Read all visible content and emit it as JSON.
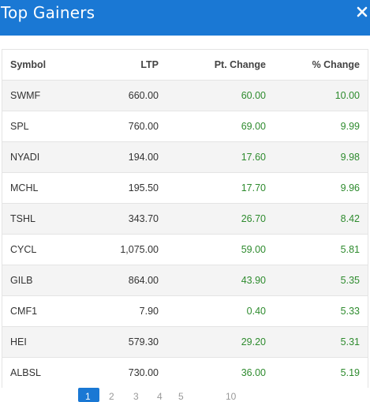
{
  "header": {
    "title": "Top Gainers",
    "close_icon": "close-icon"
  },
  "table": {
    "columns": [
      "Symbol",
      "LTP",
      "Pt. Change",
      "% Change"
    ],
    "rows": [
      {
        "symbol": "SWMF",
        "ltp": "660.00",
        "pt_change": "60.00",
        "pct_change": "10.00"
      },
      {
        "symbol": "SPL",
        "ltp": "760.00",
        "pt_change": "69.00",
        "pct_change": "9.99"
      },
      {
        "symbol": "NYADI",
        "ltp": "194.00",
        "pt_change": "17.60",
        "pct_change": "9.98"
      },
      {
        "symbol": "MCHL",
        "ltp": "195.50",
        "pt_change": "17.70",
        "pct_change": "9.96"
      },
      {
        "symbol": "TSHL",
        "ltp": "343.70",
        "pt_change": "26.70",
        "pct_change": "8.42"
      },
      {
        "symbol": "CYCL",
        "ltp": "1,075.00",
        "pt_change": "59.00",
        "pct_change": "5.81"
      },
      {
        "symbol": "GILB",
        "ltp": "864.00",
        "pt_change": "43.90",
        "pct_change": "5.35"
      },
      {
        "symbol": "CMF1",
        "ltp": "7.90",
        "pt_change": "0.40",
        "pct_change": "5.33"
      },
      {
        "symbol": "HEI",
        "ltp": "579.30",
        "pt_change": "29.20",
        "pct_change": "5.31"
      },
      {
        "symbol": "ALBSL",
        "ltp": "730.00",
        "pt_change": "36.00",
        "pct_change": "5.19"
      }
    ]
  },
  "pagination": {
    "active_page": "1",
    "pages": [
      "2",
      "3",
      "4",
      "5",
      "10"
    ]
  },
  "colors": {
    "header_bg": "#1a78d4",
    "positive": "#2e8b2e"
  }
}
